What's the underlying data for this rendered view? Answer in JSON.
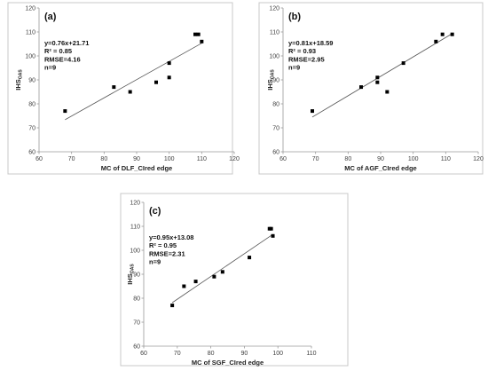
{
  "chart_data": [
    {
      "type": "scatter",
      "panel_label": "(a)",
      "xlabel": "MC of  DLF_CIred edge",
      "ylabel": "IHS",
      "ylabel_sub": "OAS",
      "xlim": [
        60,
        120
      ],
      "ylim": [
        60,
        120
      ],
      "xticks": [
        60,
        70,
        80,
        90,
        100,
        110,
        120
      ],
      "yticks": [
        60,
        70,
        80,
        90,
        100,
        110,
        120
      ],
      "stats": [
        "y=0.76x+21.71",
        "R² = 0.85",
        "RMSE=4.16",
        "n=9"
      ],
      "fit": {
        "slope": 0.76,
        "intercept": 21.71,
        "x_range": [
          68,
          110
        ]
      },
      "points": [
        {
          "x": 68,
          "y": 77
        },
        {
          "x": 83,
          "y": 87
        },
        {
          "x": 88,
          "y": 85
        },
        {
          "x": 96,
          "y": 89
        },
        {
          "x": 100,
          "y": 91
        },
        {
          "x": 100,
          "y": 97
        },
        {
          "x": 108,
          "y": 109
        },
        {
          "x": 109,
          "y": 109
        },
        {
          "x": 110,
          "y": 106
        }
      ]
    },
    {
      "type": "scatter",
      "panel_label": "(b)",
      "xlabel": "MC of  AGF_CIred edge",
      "ylabel": "IHS",
      "ylabel_sub": "OAS",
      "xlim": [
        60,
        120
      ],
      "ylim": [
        60,
        120
      ],
      "xticks": [
        60,
        70,
        80,
        90,
        100,
        110,
        120
      ],
      "yticks": [
        60,
        70,
        80,
        90,
        100,
        110,
        120
      ],
      "stats": [
        "y=0.81x+18.59",
        "R² = 0.93",
        "RMSE=2.95",
        "n=9"
      ],
      "fit": {
        "slope": 0.81,
        "intercept": 18.59,
        "x_range": [
          69,
          112
        ]
      },
      "points": [
        {
          "x": 69,
          "y": 77
        },
        {
          "x": 84,
          "y": 87
        },
        {
          "x": 89,
          "y": 89
        },
        {
          "x": 89,
          "y": 91
        },
        {
          "x": 92,
          "y": 85
        },
        {
          "x": 97,
          "y": 97
        },
        {
          "x": 107,
          "y": 106
        },
        {
          "x": 109,
          "y": 109
        },
        {
          "x": 112,
          "y": 109
        }
      ]
    },
    {
      "type": "scatter",
      "panel_label": "(c)",
      "xlabel": "MC of  SGF_CIred edge",
      "ylabel": "IHS",
      "ylabel_sub": "OAS",
      "xlim": [
        60,
        110
      ],
      "ylim": [
        60,
        120
      ],
      "xticks": [
        60,
        70,
        80,
        90,
        100,
        110
      ],
      "yticks": [
        60,
        70,
        80,
        90,
        100,
        110,
        120
      ],
      "stats": [
        "y=0.95x+13.08",
        "R² = 0.95",
        "RMSE=2.31",
        "n=9"
      ],
      "fit": {
        "slope": 0.95,
        "intercept": 13.08,
        "x_range": [
          68.5,
          98.5
        ]
      },
      "points": [
        {
          "x": 68.5,
          "y": 77
        },
        {
          "x": 72,
          "y": 85
        },
        {
          "x": 75.5,
          "y": 87
        },
        {
          "x": 81,
          "y": 89
        },
        {
          "x": 83.5,
          "y": 91
        },
        {
          "x": 91.5,
          "y": 97
        },
        {
          "x": 97.5,
          "y": 109
        },
        {
          "x": 98,
          "y": 109
        },
        {
          "x": 98.5,
          "y": 106
        }
      ]
    }
  ]
}
